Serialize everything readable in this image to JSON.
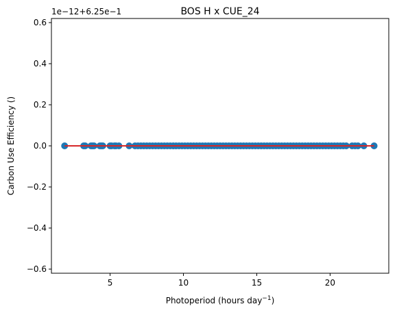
{
  "chart_data": {
    "type": "scatter",
    "title": "BOS H x CUE_24",
    "xlabel": "Photoperiod (hours day",
    "xlabel_sup": "−1",
    "xlabel_end": ")",
    "ylabel": "Carbon Use Efficiency ()",
    "offset_text": "1e−12+6.25e−1",
    "xlim": [
      1.0,
      24.0
    ],
    "ylim": [
      -0.62,
      0.62
    ],
    "xticks": [
      5,
      10,
      15,
      20
    ],
    "xtick_labels": [
      "5",
      "10",
      "15",
      "20"
    ],
    "yticks": [
      0.6,
      0.4,
      0.2,
      0.0,
      -0.2,
      -0.4,
      -0.6
    ],
    "ytick_labels": [
      "0.6",
      "0.4",
      "0.2",
      "0.0",
      "−0.2",
      "−0.4",
      "−0.6"
    ],
    "grid": false,
    "points": {
      "y": 0.0,
      "x": [
        1.9,
        3.2,
        3.3,
        3.7,
        3.8,
        3.9,
        4.3,
        4.4,
        4.5,
        5.0,
        5.1,
        5.3,
        5.4,
        5.6,
        6.3,
        6.7,
        6.9,
        7.1,
        7.3,
        7.5,
        7.7,
        7.9,
        8.1,
        8.3,
        8.5,
        8.7,
        8.9,
        9.1,
        9.3,
        9.5,
        9.7,
        9.9,
        10.1,
        10.3,
        10.5,
        10.7,
        10.9,
        11.1,
        11.3,
        11.5,
        11.7,
        11.9,
        12.1,
        12.3,
        12.5,
        12.7,
        12.9,
        13.1,
        13.3,
        13.5,
        13.7,
        13.9,
        14.1,
        14.3,
        14.5,
        14.7,
        14.9,
        15.1,
        15.3,
        15.5,
        15.7,
        15.9,
        16.1,
        16.3,
        16.5,
        16.7,
        16.9,
        17.1,
        17.3,
        17.5,
        17.7,
        17.9,
        18.1,
        18.3,
        18.5,
        18.7,
        18.9,
        19.1,
        19.3,
        19.5,
        19.7,
        19.9,
        20.1,
        20.3,
        20.5,
        20.7,
        20.9,
        21.1,
        21.5,
        21.7,
        21.9,
        22.3,
        23.0
      ],
      "color": "#1f77b4"
    },
    "fit_line": {
      "x": [
        1.9,
        23.0
      ],
      "y": [
        0.0,
        0.0
      ],
      "color": "#d62728"
    }
  }
}
